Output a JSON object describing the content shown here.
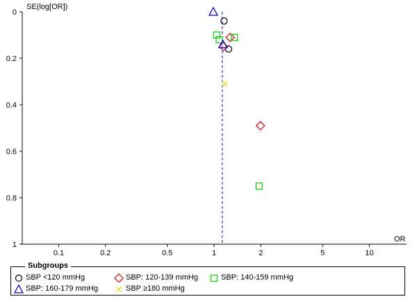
{
  "chart_data": {
    "type": "scatter",
    "title": "",
    "xlabel": "OR",
    "ylabel": "SE(log[OR])",
    "xscale": "log",
    "xlim": [
      0.05,
      15
    ],
    "ylim": [
      0,
      1
    ],
    "y_inverted": true,
    "xticks": [
      0.1,
      0.2,
      0.5,
      1,
      2,
      5,
      10
    ],
    "xtick_labels": [
      "0.1",
      "0.2",
      "0.5",
      "1",
      "2",
      "5",
      "10"
    ],
    "yticks": [
      0,
      0.2,
      0.4,
      0.6,
      0.8,
      1
    ],
    "ytick_labels": [
      "0",
      "0.2",
      "0.4",
      "0.6",
      "0.8",
      "1"
    ],
    "reference_line_or": 1.13,
    "legend_title": "Subgroups",
    "legend_placement": "bottom",
    "series": [
      {
        "name": "SBP <120 mmHg",
        "marker": "circle",
        "color": "#000000",
        "points": [
          [
            1.16,
            0.04
          ],
          [
            1.24,
            0.16
          ]
        ]
      },
      {
        "name": "SBP: 120-139 mmHg",
        "marker": "diamond",
        "color": "#cc0000",
        "points": [
          [
            1.27,
            0.11
          ],
          [
            1.15,
            0.15
          ],
          [
            1.99,
            0.49
          ]
        ]
      },
      {
        "name": "SBP: 140-159 mmHg",
        "marker": "square",
        "color": "#00cc00",
        "points": [
          [
            1.04,
            0.1
          ],
          [
            1.08,
            0.12
          ],
          [
            1.35,
            0.11
          ],
          [
            1.95,
            0.75
          ]
        ]
      },
      {
        "name": "SBP: 160-179 mmHg",
        "marker": "triangle",
        "color": "#0000cc",
        "points": [
          [
            0.99,
            0.0
          ],
          [
            1.14,
            0.14
          ]
        ]
      },
      {
        "name": "SBP ≥180 mmHg",
        "marker": "x",
        "color": "#dddd00",
        "points": [
          [
            1.17,
            0.31
          ]
        ]
      }
    ]
  }
}
